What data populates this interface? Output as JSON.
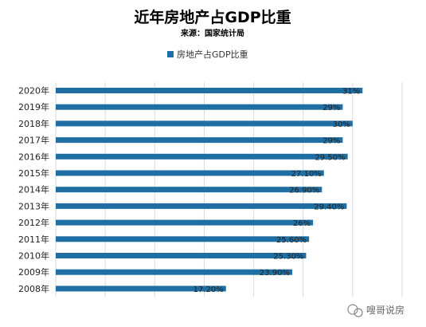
{
  "chart_data": {
    "type": "bar",
    "orientation": "horizontal",
    "title": "近年房地产占GDP比重",
    "subtitle": "来源：国家统计局",
    "legend": {
      "position": "top",
      "entries": [
        "房地产占GDP比重"
      ]
    },
    "categories": [
      "2020年",
      "2019年",
      "2018年",
      "2017年",
      "2016年",
      "2015年",
      "2014年",
      "2013年",
      "2012年",
      "2011年",
      "2010年",
      "2009年",
      "2008年"
    ],
    "values": [
      31,
      29,
      30,
      29,
      29.5,
      27.1,
      26.9,
      29.4,
      26,
      25.6,
      25.3,
      23.9,
      17.2
    ],
    "data_labels": [
      "31%",
      "29%",
      "30%",
      "29%",
      "29.50%",
      "27.10%",
      "26.90%",
      "29.40%",
      "26%",
      "25.60%",
      "25.30%",
      "23.90%",
      "17.20%"
    ],
    "xlim": [
      0,
      35
    ],
    "grid": true,
    "bar_color": "#1f6fa5"
  },
  "watermark": {
    "text": "嗖哥说房",
    "icon": "wechat-icon"
  }
}
